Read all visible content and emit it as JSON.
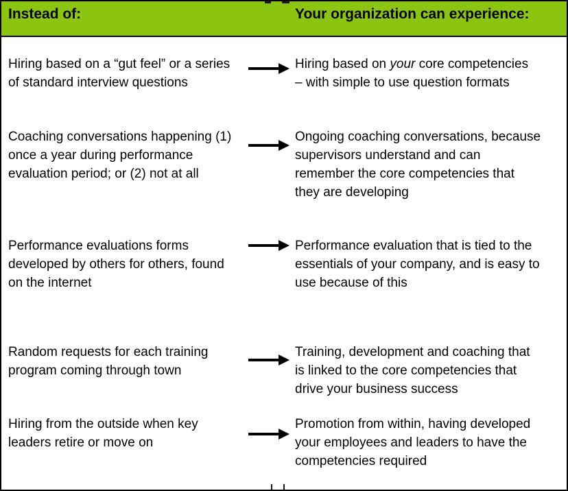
{
  "colors": {
    "header_bg": "#8CC510",
    "border": "#000000",
    "text": "#000000"
  },
  "header": {
    "left": "Instead of:",
    "right": "Your organization can experience:"
  },
  "rows": [
    {
      "instead": "Hiring based on a “gut feel” or a series\nof standard interview questions",
      "experience_pre": "Hiring  based on ",
      "experience_italic": "your",
      "experience_post": " core competencies\n– with simple to use question formats"
    },
    {
      "instead": "Coaching conversations happening (1)\nonce a year during performance\nevaluation period; or (2) not at all",
      "experience_pre": "Ongoing coaching conversations, because\nsupervisors understand and can\nremember the core competencies that\nthey are developing",
      "experience_italic": "",
      "experience_post": ""
    },
    {
      "instead": "Performance evaluations forms\ndeveloped by others for others, found\non the internet",
      "experience_pre": "Performance evaluation that is tied to the\nessentials of your company, and is easy to\nuse because of this",
      "experience_italic": "",
      "experience_post": ""
    },
    {
      "instead": "Random requests for each training\nprogram coming through town",
      "experience_pre": "Training, development and coaching that\nis linked to the core competencies that\ndrive your business success",
      "experience_italic": "",
      "experience_post": ""
    },
    {
      "instead": "Hiring from the outside when key\nleaders retire or move on",
      "experience_pre": "Promotion from within, having developed\nyour employees and leaders to have the\ncompetencies required",
      "experience_italic": "",
      "experience_post": ""
    }
  ]
}
